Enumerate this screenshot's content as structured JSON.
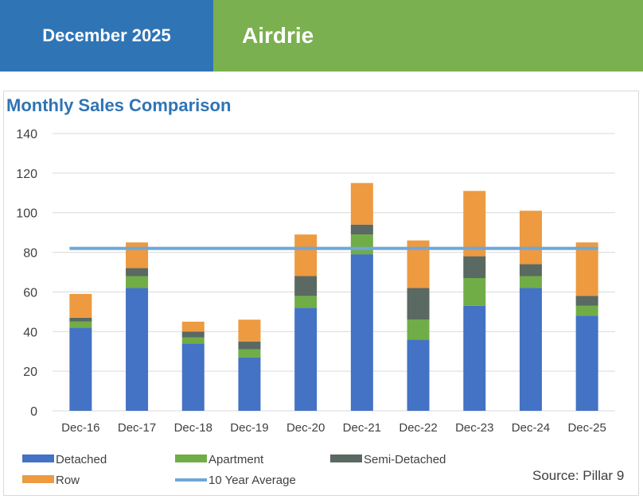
{
  "header": {
    "date_label": "December 2025",
    "area_label": "Airdrie"
  },
  "colors": {
    "header_blue": "#2f74b5",
    "header_green": "#7ab04f",
    "detached": "#4472c4",
    "apartment": "#70ad47",
    "semi_detached": "#5a6962",
    "row": "#ed9a40",
    "avg_line": "#6fa7d8"
  },
  "chart_data": {
    "type": "bar",
    "stacked": true,
    "title": "Monthly Sales Comparison",
    "xlabel": "",
    "ylabel": "",
    "ylim": [
      0,
      140
    ],
    "yticks": [
      0,
      20,
      40,
      60,
      80,
      100,
      120,
      140
    ],
    "grid": true,
    "legend_position": "bottom",
    "categories": [
      "Dec-16",
      "Dec-17",
      "Dec-18",
      "Dec-19",
      "Dec-20",
      "Dec-21",
      "Dec-22",
      "Dec-23",
      "Dec-24",
      "Dec-25"
    ],
    "series": [
      {
        "name": "Detached",
        "color_key": "detached",
        "values": [
          42,
          62,
          34,
          27,
          52,
          79,
          36,
          53,
          62,
          48
        ]
      },
      {
        "name": "Apartment",
        "color_key": "apartment",
        "values": [
          3,
          6,
          3,
          4,
          6,
          10,
          10,
          14,
          6,
          5
        ]
      },
      {
        "name": "Semi-Detached",
        "color_key": "semi_detached",
        "values": [
          2,
          4,
          3,
          4,
          10,
          5,
          16,
          11,
          6,
          5
        ]
      },
      {
        "name": "Row",
        "color_key": "row",
        "values": [
          12,
          13,
          5,
          11,
          21,
          21,
          24,
          33,
          27,
          27
        ]
      }
    ],
    "lines": [
      {
        "name": "10 Year Average",
        "color_key": "avg_line",
        "value": 82
      }
    ]
  },
  "source_label": "Source: Pillar 9"
}
